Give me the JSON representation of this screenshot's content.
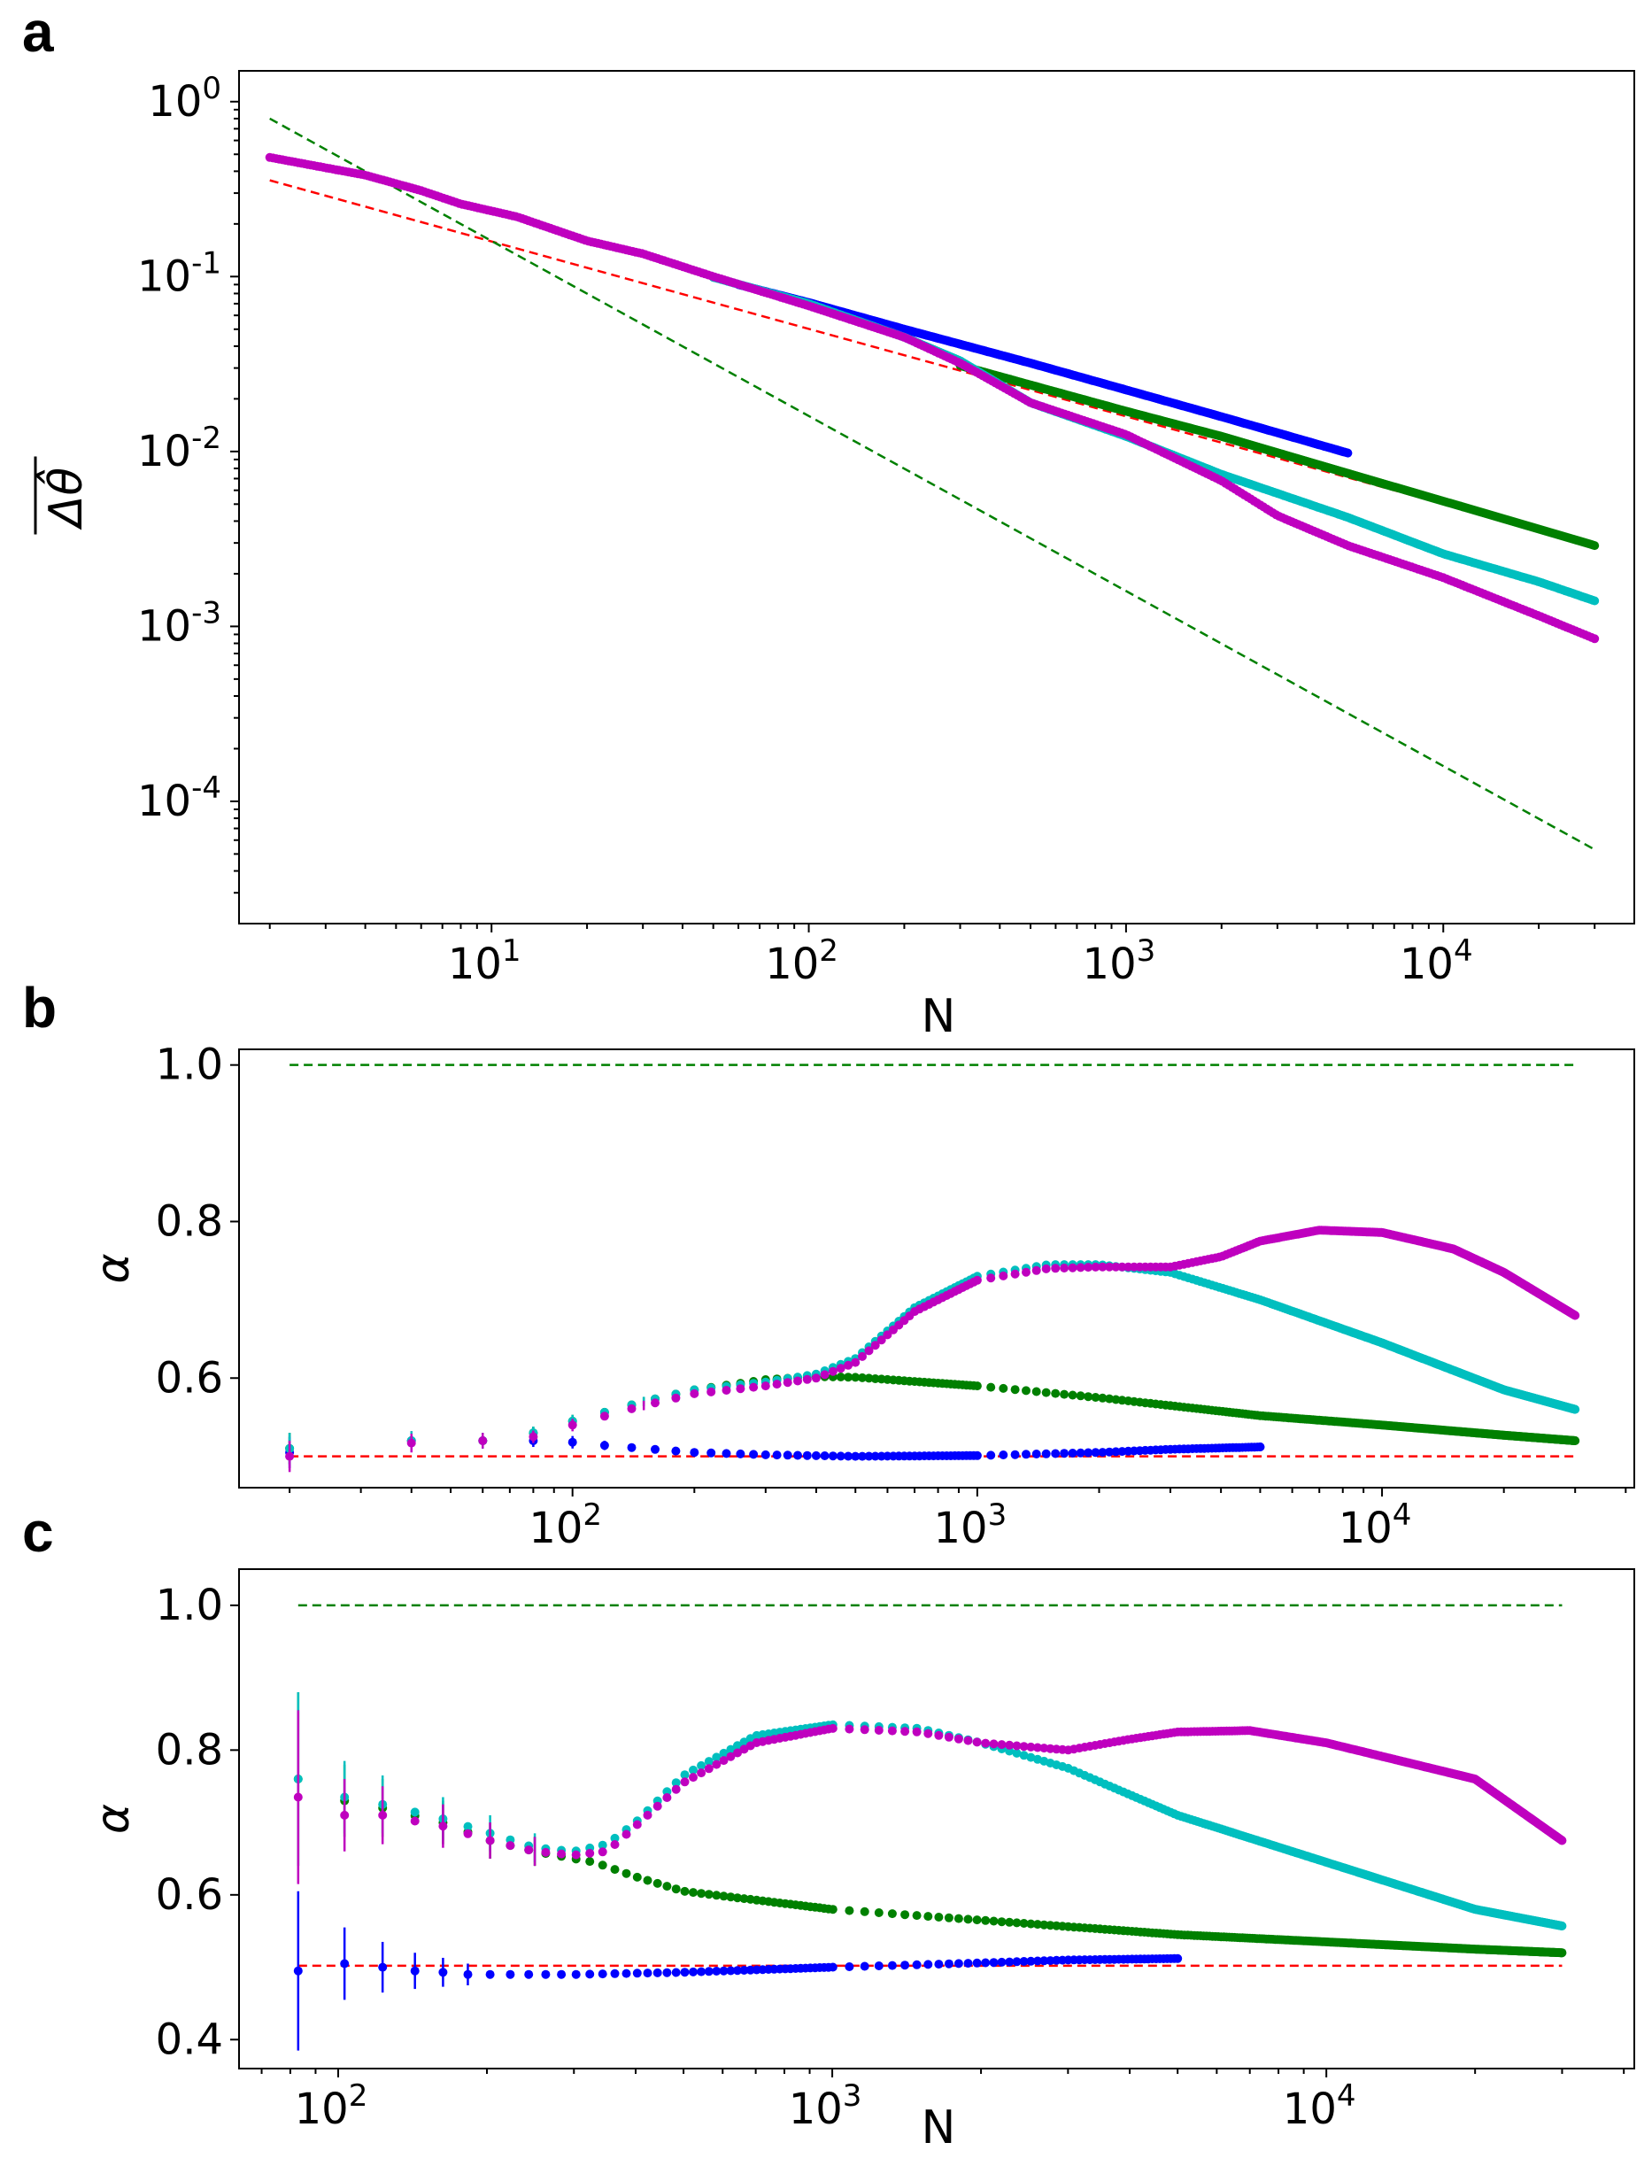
{
  "figure": {
    "panels": [
      "a",
      "b",
      "c"
    ]
  },
  "chart_data": [
    {
      "panel": "a",
      "type": "scatter",
      "xscale": "log",
      "yscale": "log",
      "xlabel": "N",
      "ylabel": "Δθ̂ (overline)",
      "xlim": [
        1.6,
        40000
      ],
      "ylim": [
        2e-05,
        1.5
      ],
      "xticks": [
        10,
        100,
        1000,
        10000
      ],
      "xtick_labels": [
        "10^1",
        "10^2",
        "10^3",
        "10^4"
      ],
      "yticks": [
        0.0001,
        0.001,
        0.01,
        0.1,
        1
      ],
      "ytick_labels": [
        "10^-4",
        "10^-3",
        "10^-2",
        "10^-1",
        "10^0"
      ],
      "reference_lines": [
        {
          "name": "N^-1/2",
          "color": "#ff0000",
          "style": "dashed",
          "x": [
            2,
            30000
          ],
          "y": [
            0.355,
            0.0029
          ]
        },
        {
          "name": "N^-1",
          "color": "#008000",
          "style": "dashed",
          "x": [
            2,
            30000
          ],
          "y": [
            0.8,
            5.3e-05
          ]
        }
      ],
      "series": [
        {
          "name": "blue",
          "color": "#0000ff",
          "x_end": 5000,
          "points": [
            [
              60,
              0.09
            ],
            [
              100,
              0.071
            ],
            [
              200,
              0.05
            ],
            [
              500,
              0.032
            ],
            [
              1000,
              0.0225
            ],
            [
              2000,
              0.0158
            ],
            [
              5000,
              0.0098
            ]
          ]
        },
        {
          "name": "green",
          "color": "#008000",
          "x_end": 30000,
          "points": [
            [
              300,
              0.031
            ],
            [
              500,
              0.024
            ],
            [
              1000,
              0.017
            ],
            [
              2000,
              0.0122
            ],
            [
              5000,
              0.0075
            ],
            [
              10000,
              0.0052
            ],
            [
              20000,
              0.0036
            ],
            [
              30000,
              0.0029
            ]
          ]
        },
        {
          "name": "cyan",
          "color": "#00bfbf",
          "x_end": 30000,
          "points": [
            [
              50,
              0.099
            ],
            [
              100,
              0.07
            ],
            [
              200,
              0.045
            ],
            [
              300,
              0.033
            ],
            [
              500,
              0.019
            ],
            [
              1000,
              0.0122
            ],
            [
              2000,
              0.0074
            ],
            [
              5000,
              0.0042
            ],
            [
              10000,
              0.0026
            ],
            [
              20000,
              0.0018
            ],
            [
              30000,
              0.0014
            ]
          ]
        },
        {
          "name": "magenta",
          "color": "#bf00bf",
          "x_end": 30000,
          "points": [
            [
              2,
              0.48
            ],
            [
              4,
              0.38
            ],
            [
              6,
              0.31
            ],
            [
              8,
              0.26
            ],
            [
              12,
              0.22
            ],
            [
              20,
              0.16
            ],
            [
              30,
              0.135
            ],
            [
              50,
              0.1
            ],
            [
              100,
              0.068
            ],
            [
              200,
              0.045
            ],
            [
              300,
              0.032
            ],
            [
              500,
              0.019
            ],
            [
              1000,
              0.0125
            ],
            [
              2000,
              0.0068
            ],
            [
              3000,
              0.0043
            ],
            [
              5000,
              0.0029
            ],
            [
              10000,
              0.0019
            ],
            [
              20000,
              0.00115
            ],
            [
              30000,
              0.00085
            ]
          ]
        }
      ]
    },
    {
      "panel": "b",
      "type": "scatter",
      "xscale": "log",
      "yscale": "linear",
      "xlabel": "",
      "ylabel": "α",
      "xlim": [
        15,
        42000
      ],
      "ylim": [
        0.46,
        1.02
      ],
      "xticks": [
        100,
        1000,
        10000
      ],
      "xtick_labels": [
        "10^2",
        "10^3",
        "10^4"
      ],
      "yticks": [
        0.6,
        0.8,
        1.0
      ],
      "ytick_labels": [
        "0.6",
        "0.8",
        "1.0"
      ],
      "reference_lines": [
        {
          "name": "alpha=1",
          "color": "#008000",
          "style": "dashed",
          "x": [
            20,
            30000
          ],
          "y": [
            1.0,
            1.0
          ]
        },
        {
          "name": "alpha=0.5",
          "color": "#ff0000",
          "style": "dashed",
          "x": [
            20,
            30000
          ],
          "y": [
            0.5,
            0.5
          ]
        }
      ],
      "series": [
        {
          "name": "blue",
          "color": "#0000ff",
          "points": [
            [
              20,
              0.505
            ],
            [
              40,
              0.52
            ],
            [
              60,
              0.52
            ],
            [
              80,
              0.52
            ],
            [
              100,
              0.518
            ],
            [
              120,
              0.514
            ],
            [
              150,
              0.51
            ],
            [
              200,
              0.505
            ],
            [
              300,
              0.502
            ],
            [
              500,
              0.5
            ],
            [
              1000,
              0.501
            ],
            [
              2000,
              0.505
            ],
            [
              3000,
              0.509
            ],
            [
              5000,
              0.512
            ]
          ]
        },
        {
          "name": "green",
          "color": "#008000",
          "points": [
            [
              20,
              0.51
            ],
            [
              40,
              0.52
            ],
            [
              60,
              0.52
            ],
            [
              80,
              0.53
            ],
            [
              100,
              0.545
            ],
            [
              150,
              0.57
            ],
            [
              200,
              0.585
            ],
            [
              300,
              0.598
            ],
            [
              400,
              0.602
            ],
            [
              500,
              0.601
            ],
            [
              1000,
              0.59
            ],
            [
              2000,
              0.575
            ],
            [
              5000,
              0.552
            ],
            [
              10000,
              0.54
            ],
            [
              20000,
              0.527
            ],
            [
              30000,
              0.52
            ]
          ]
        },
        {
          "name": "cyan",
          "color": "#00bfbf",
          "points": [
            [
              20,
              0.51
            ],
            [
              40,
              0.52
            ],
            [
              60,
              0.52
            ],
            [
              80,
              0.53
            ],
            [
              100,
              0.545
            ],
            [
              150,
              0.57
            ],
            [
              200,
              0.585
            ],
            [
              300,
              0.595
            ],
            [
              400,
              0.605
            ],
            [
              500,
              0.625
            ],
            [
              700,
              0.69
            ],
            [
              1000,
              0.73
            ],
            [
              1500,
              0.745
            ],
            [
              2000,
              0.745
            ],
            [
              3000,
              0.735
            ],
            [
              5000,
              0.7
            ],
            [
              10000,
              0.645
            ],
            [
              20000,
              0.585
            ],
            [
              30000,
              0.56
            ]
          ]
        },
        {
          "name": "magenta",
          "color": "#bf00bf",
          "points": [
            [
              20,
              0.5
            ],
            [
              40,
              0.517
            ],
            [
              60,
              0.52
            ],
            [
              80,
              0.525
            ],
            [
              100,
              0.54
            ],
            [
              150,
              0.565
            ],
            [
              200,
              0.58
            ],
            [
              300,
              0.59
            ],
            [
              400,
              0.6
            ],
            [
              500,
              0.62
            ],
            [
              700,
              0.685
            ],
            [
              1000,
              0.725
            ],
            [
              1500,
              0.74
            ],
            [
              2000,
              0.742
            ],
            [
              3000,
              0.742
            ],
            [
              4000,
              0.755
            ],
            [
              5000,
              0.775
            ],
            [
              7000,
              0.789
            ],
            [
              10000,
              0.786
            ],
            [
              15000,
              0.765
            ],
            [
              20000,
              0.735
            ],
            [
              30000,
              0.68
            ]
          ]
        }
      ]
    },
    {
      "panel": "c",
      "type": "scatter",
      "xscale": "log",
      "yscale": "linear",
      "xlabel": "N",
      "ylabel": "α",
      "xlim": [
        63,
        42000
      ],
      "ylim": [
        0.36,
        1.05
      ],
      "xticks": [
        100,
        1000,
        10000
      ],
      "xtick_labels": [
        "10^2",
        "10^3",
        "10^4"
      ],
      "yticks": [
        0.4,
        0.6,
        0.8,
        1.0
      ],
      "ytick_labels": [
        "0.4",
        "0.6",
        "0.8",
        "1.0"
      ],
      "reference_lines": [
        {
          "name": "alpha=1",
          "color": "#008000",
          "style": "dashed",
          "x": [
            83,
            30000
          ],
          "y": [
            1.0,
            1.0
          ]
        },
        {
          "name": "alpha=0.5",
          "color": "#ff0000",
          "style": "dashed",
          "x": [
            83,
            30000
          ],
          "y": [
            0.502,
            0.502
          ]
        }
      ],
      "series": [
        {
          "name": "blue",
          "color": "#0000ff",
          "points": [
            [
              83,
              0.495
            ],
            [
              103,
              0.505
            ],
            [
              123,
              0.5
            ],
            [
              143,
              0.495
            ],
            [
              163,
              0.493
            ],
            [
              183,
              0.49
            ],
            [
              203,
              0.49
            ],
            [
              250,
              0.49
            ],
            [
              300,
              0.49
            ],
            [
              500,
              0.493
            ],
            [
              1000,
              0.5
            ],
            [
              2000,
              0.506
            ],
            [
              3000,
              0.51
            ],
            [
              5000,
              0.512
            ]
          ]
        },
        {
          "name": "green",
          "color": "#008000",
          "points": [
            [
              83,
              0.76
            ],
            [
              103,
              0.73
            ],
            [
              123,
              0.72
            ],
            [
              163,
              0.7
            ],
            [
              203,
              0.675
            ],
            [
              250,
              0.66
            ],
            [
              300,
              0.65
            ],
            [
              330,
              0.645
            ],
            [
              400,
              0.625
            ],
            [
              500,
              0.605
            ],
            [
              1000,
              0.58
            ],
            [
              2000,
              0.565
            ],
            [
              5000,
              0.545
            ],
            [
              10000,
              0.535
            ],
            [
              20000,
              0.525
            ],
            [
              30000,
              0.52
            ]
          ]
        },
        {
          "name": "cyan",
          "color": "#00bfbf",
          "points": [
            [
              83,
              0.76
            ],
            [
              103,
              0.735
            ],
            [
              123,
              0.725
            ],
            [
              163,
              0.705
            ],
            [
              203,
              0.685
            ],
            [
              250,
              0.665
            ],
            [
              300,
              0.66
            ],
            [
              350,
              0.67
            ],
            [
              400,
              0.7
            ],
            [
              500,
              0.765
            ],
            [
              700,
              0.82
            ],
            [
              1000,
              0.835
            ],
            [
              1500,
              0.83
            ],
            [
              2000,
              0.81
            ],
            [
              3000,
              0.775
            ],
            [
              5000,
              0.71
            ],
            [
              10000,
              0.645
            ],
            [
              20000,
              0.58
            ],
            [
              30000,
              0.557
            ]
          ]
        },
        {
          "name": "magenta",
          "color": "#bf00bf",
          "points": [
            [
              83,
              0.735
            ],
            [
              103,
              0.71
            ],
            [
              123,
              0.71
            ],
            [
              163,
              0.695
            ],
            [
              203,
              0.675
            ],
            [
              250,
              0.66
            ],
            [
              300,
              0.655
            ],
            [
              350,
              0.66
            ],
            [
              400,
              0.695
            ],
            [
              500,
              0.755
            ],
            [
              700,
              0.81
            ],
            [
              1000,
              0.83
            ],
            [
              1500,
              0.825
            ],
            [
              2000,
              0.81
            ],
            [
              3000,
              0.8
            ],
            [
              4000,
              0.815
            ],
            [
              5000,
              0.825
            ],
            [
              7000,
              0.827
            ],
            [
              10000,
              0.81
            ],
            [
              20000,
              0.76
            ],
            [
              30000,
              0.675
            ]
          ]
        }
      ]
    }
  ]
}
